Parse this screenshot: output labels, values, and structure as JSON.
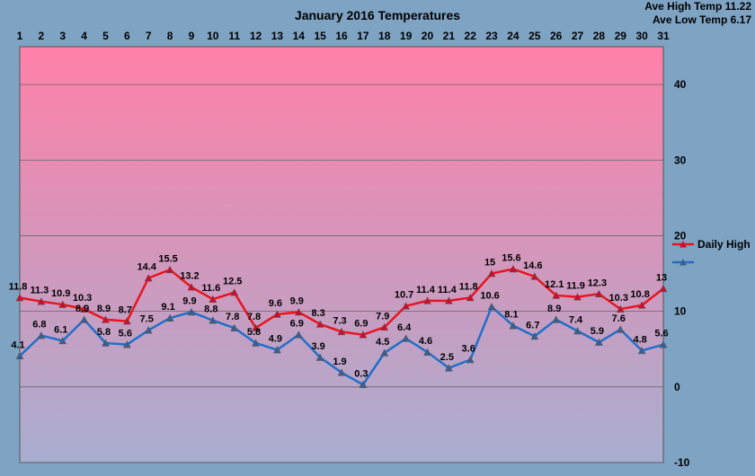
{
  "ave_high": "Ave High Temp 11.22",
  "ave_low": "Ave Low Temp 6.17",
  "chart_data": {
    "type": "line",
    "title": "January 2016 Temperatures",
    "xlabel": "",
    "ylabel": "",
    "x": [
      1,
      2,
      3,
      4,
      5,
      6,
      7,
      8,
      9,
      10,
      11,
      12,
      13,
      14,
      15,
      16,
      17,
      18,
      19,
      20,
      21,
      22,
      23,
      24,
      25,
      26,
      27,
      28,
      29,
      30,
      31
    ],
    "x_tick_labels": [
      "1",
      "2",
      "3",
      "4",
      "5",
      "6",
      "7",
      "8",
      "9",
      "10",
      "11",
      "12",
      "13",
      "14",
      "15",
      "16",
      "17",
      "18",
      "19",
      "20",
      "21",
      "22",
      "23",
      "24",
      "25",
      "26",
      "27",
      "28",
      "29",
      "30",
      "31"
    ],
    "ylim": [
      -10,
      45
    ],
    "y_ticks": [
      -10,
      0,
      10,
      20,
      30,
      40
    ],
    "y_tick_labels": [
      "-10",
      "0",
      "10",
      "20",
      "30",
      "40"
    ],
    "grid": true,
    "legend_position": "right",
    "series": [
      {
        "name": "Daily High",
        "color": "#e8141e",
        "values": [
          11.8,
          11.3,
          10.9,
          10.3,
          8.9,
          8.7,
          14.4,
          15.5,
          13.2,
          11.6,
          12.5,
          7.8,
          9.6,
          9.9,
          8.3,
          7.3,
          6.9,
          7.9,
          10.7,
          11.4,
          11.4,
          11.8,
          15,
          15.6,
          14.6,
          12.1,
          11.9,
          12.3,
          10.3,
          10.8,
          13
        ],
        "labels": [
          "11.8",
          "11.3",
          "10.9",
          "10.3",
          "8.9",
          "8.7",
          "14.4",
          "15.5",
          "13.2",
          "11.6",
          "12.5",
          "7.8",
          "9.6",
          "9.9",
          "8.3",
          "7.3",
          "6.9",
          "7.9",
          "10.7",
          "11.4",
          "11.4",
          "11.8",
          "15",
          "15.6",
          "14.6",
          "12.1",
          "11.9",
          "12.3",
          "10.3",
          "10.8",
          "13"
        ]
      },
      {
        "color": "#1f6fc8",
        "values": [
          4.1,
          6.8,
          6.1,
          8.9,
          5.8,
          5.6,
          7.5,
          9.1,
          9.9,
          8.8,
          7.8,
          5.8,
          4.9,
          6.9,
          3.9,
          1.9,
          0.3,
          4.5,
          6.4,
          4.6,
          2.5,
          3.6,
          10.6,
          8.1,
          6.7,
          8.9,
          7.4,
          5.9,
          7.6,
          4.8,
          5.6
        ],
        "labels": [
          "4.1",
          "6.8",
          "6.1",
          "8.9",
          "5.8",
          "5.6",
          "7.5",
          "9.1",
          "9.9",
          "8.8",
          "7.8",
          "5.8",
          "4.9",
          "6.9",
          "3.9",
          "1.9",
          "0.3",
          "4.5",
          "6.4",
          "4.6",
          "2.5",
          "3.6",
          "10.6",
          "8.1",
          "6.7",
          "8.9",
          "7.4",
          "5.9",
          "7.6",
          "4.8",
          "5.6"
        ]
      }
    ],
    "background_gradient": [
      "#ff80a8",
      "#a8aed0"
    ]
  }
}
